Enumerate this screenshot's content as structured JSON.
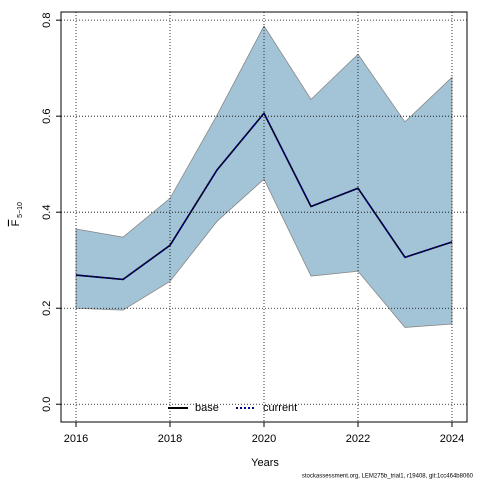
{
  "chart_data": {
    "type": "band-line",
    "x_label": "Years",
    "y_label": "F",
    "y_label_sub": "5−10",
    "footer": "stockassessment.org, LEM275b_trial1, r19408, git:1cc464b8060",
    "x": [
      2016,
      2017,
      2018,
      2019,
      2020,
      2021,
      2022,
      2023,
      2024
    ],
    "series": [
      {
        "name": "base",
        "color": "#000000",
        "line": "solid",
        "values": [
          0.269,
          0.26,
          0.331,
          0.488,
          0.606,
          0.412,
          0.45,
          0.306,
          0.338
        ]
      },
      {
        "name": "current",
        "color": "#00008b",
        "line": "dotted",
        "values": [
          0.269,
          0.26,
          0.331,
          0.488,
          0.606,
          0.412,
          0.45,
          0.306,
          0.338
        ]
      }
    ],
    "band": {
      "color": "#a3c4d6",
      "upper": [
        0.365,
        0.348,
        0.429,
        0.602,
        0.788,
        0.635,
        0.729,
        0.588,
        0.681
      ],
      "lower": [
        0.2,
        0.196,
        0.256,
        0.381,
        0.469,
        0.267,
        0.277,
        0.16,
        0.167
      ]
    },
    "xlim": [
      2015.68,
      2024.32
    ],
    "xticks": [
      2016,
      2018,
      2020,
      2022,
      2024
    ],
    "ylim": [
      -0.037,
      0.817
    ],
    "yticks": [
      {
        "value": 0,
        "label": "0.0"
      },
      {
        "value": 0.2,
        "label": "0.2"
      },
      {
        "value": 0.4,
        "label": "0.4"
      },
      {
        "value": 0.6,
        "label": "0.6"
      },
      {
        "value": 0.8,
        "label": "0.8"
      }
    ],
    "grid": true,
    "legend": "bottom"
  }
}
